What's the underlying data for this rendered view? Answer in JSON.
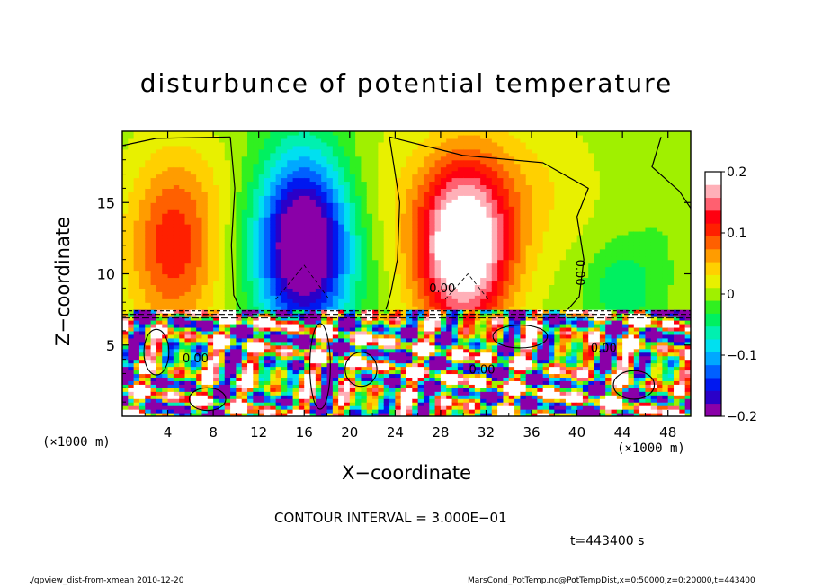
{
  "chart_data": {
    "type": "heatmap",
    "title": "disturbunce of potential temperature",
    "xlabel": "X−coordinate",
    "ylabel": "Z−coordinate",
    "x_unit_left": "(×1000 m)",
    "x_unit_right": "(×1000 m)",
    "xlim": [
      0,
      50
    ],
    "ylim": [
      0,
      20
    ],
    "x_ticks": [
      "4",
      "8",
      "12",
      "16",
      "20",
      "24",
      "28",
      "32",
      "36",
      "40",
      "44",
      "48"
    ],
    "y_ticks": [
      "5",
      "10",
      "15"
    ],
    "colorbar": {
      "range": [
        -0.2,
        0.2
      ],
      "ticks": [
        "0.2",
        "0.1",
        "0",
        "−0.1",
        "−0.2"
      ],
      "colors": [
        "#8a00a8",
        "#2a00c8",
        "#0018f0",
        "#0060ff",
        "#00a8ff",
        "#00e0f0",
        "#00f0b0",
        "#00f060",
        "#30f020",
        "#a0f000",
        "#e8f000",
        "#ffd000",
        "#ff9c00",
        "#ff6000",
        "#ff2000",
        "#ff0010",
        "#ff6070",
        "#ffb0b8",
        "#ffffff"
      ]
    },
    "contour_labels": [
      "0.00",
      "0.00",
      "0.00",
      "0.00",
      "0.00"
    ],
    "contour_interval": "CONTOUR INTERVAL = 3.000E−01",
    "time": "t=443400 s"
  },
  "footer": {
    "left": "./gpview_dist-from-xmean   2010-12-20",
    "right": "MarsCond_PotTemp.nc@PotTempDist,x=0:50000,z=0:20000,t=443400"
  }
}
